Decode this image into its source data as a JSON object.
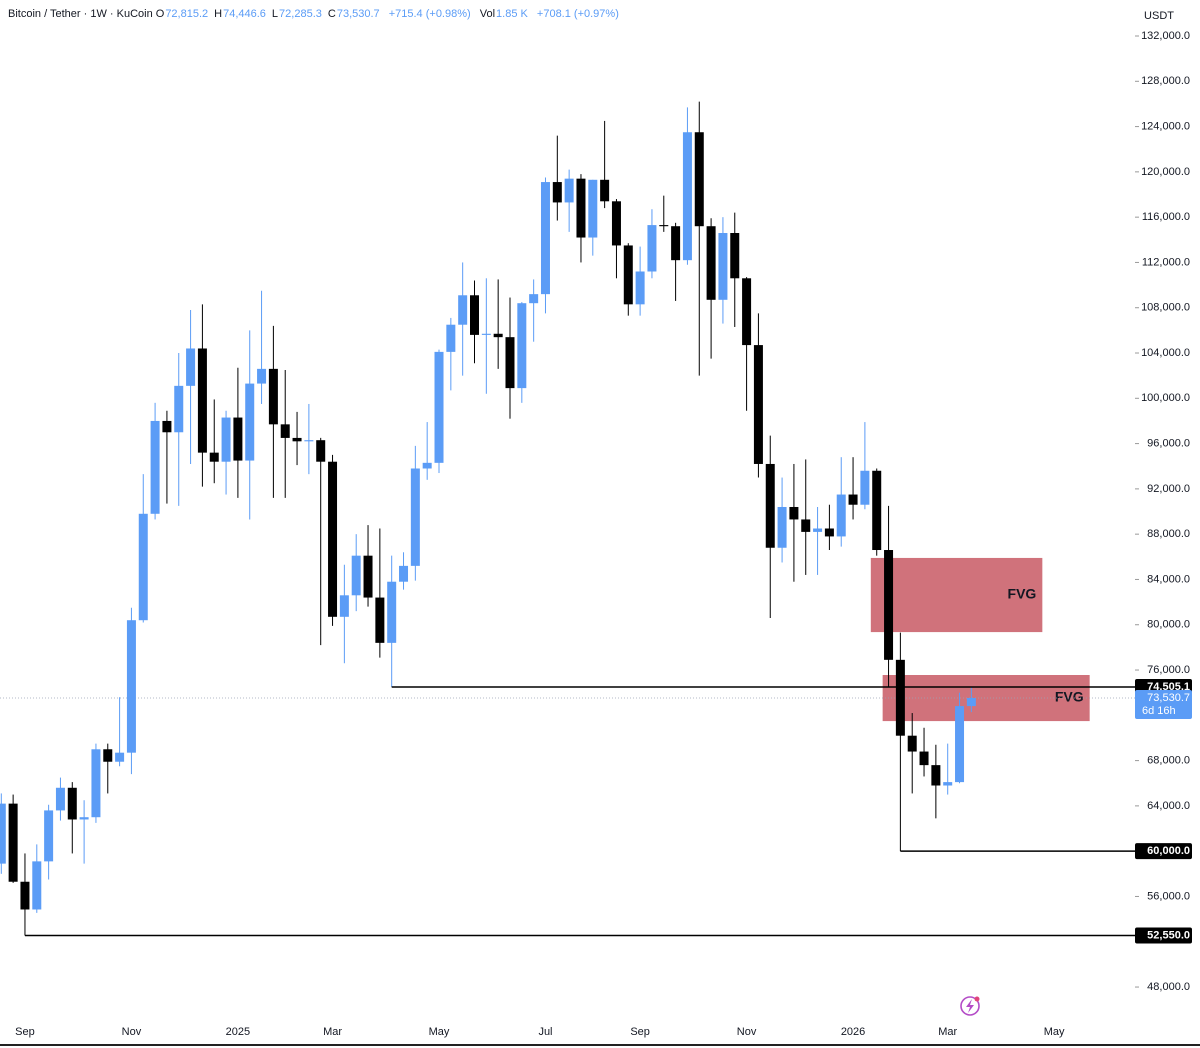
{
  "header": {
    "symbol": "Bitcoin / Tether · 1W · KuCoin",
    "fields": [
      {
        "key": "O",
        "text": "72,815.2"
      },
      {
        "key": "H",
        "text": "74,446.6"
      },
      {
        "key": "L",
        "text": "72,285.3"
      },
      {
        "key": "C",
        "text": "73,530.7"
      }
    ],
    "change": "+715.4 (+0.98%)",
    "volume_key": "Vol",
    "volume": "1.85 K",
    "volume_change": "+708.1 (+0.97%)"
  },
  "chart_data": {
    "type": "candlestick",
    "currency": "USDT",
    "up_color": "#5b9cf6",
    "down_color": "#000000",
    "grid": false,
    "categories": [
      null,
      null,
      "Sep",
      null,
      null,
      null,
      null,
      null,
      null,
      null,
      null,
      "Nov",
      null,
      null,
      null,
      null,
      null,
      null,
      null,
      null,
      "2025",
      null,
      null,
      null,
      null,
      null,
      null,
      null,
      "Mar",
      null,
      null,
      null,
      null,
      null,
      null,
      null,
      null,
      "May",
      null,
      null,
      null,
      null,
      null,
      null,
      null,
      null,
      "Jul",
      null,
      null,
      null,
      null,
      null,
      null,
      null,
      "Sep",
      null,
      null,
      null,
      null,
      null,
      null,
      null,
      null,
      "Nov",
      null,
      null,
      null,
      null,
      null,
      null,
      null,
      null,
      "2026",
      null,
      null,
      null,
      null,
      null,
      null,
      null,
      "Mar",
      null,
      null,
      null,
      null,
      null,
      null,
      null,
      null,
      "May",
      null,
      null,
      null,
      null,
      null,
      null
    ],
    "open": [
      58900,
      64200,
      57300,
      54850,
      59100,
      63600,
      65600,
      62800,
      63000,
      69000,
      67900,
      68700,
      80400,
      89800,
      98000,
      97000,
      101100,
      104400,
      95200,
      94400,
      98300,
      94500,
      101300,
      102600,
      97700,
      96500,
      96200,
      96300,
      94400,
      80700,
      82600,
      86100,
      82400,
      78400,
      83800,
      85200,
      93800,
      94300,
      104100,
      106500,
      109100,
      105600,
      105700,
      105400,
      100900,
      108400,
      109200,
      119100,
      117300,
      119400,
      114200,
      119300,
      117400,
      113500,
      108300,
      111200,
      115300,
      115200,
      112200,
      123500,
      115200,
      108700,
      114600,
      110600,
      104700,
      94200,
      86800,
      90400,
      89300,
      88200,
      88500,
      87800,
      91500,
      90600,
      93600,
      86600,
      76900,
      70200,
      68800,
      67600,
      65800,
      66100,
      72815.2,
      null,
      null,
      null,
      null,
      null,
      null,
      null,
      null,
      null,
      null,
      null,
      null,
      null
    ],
    "high": [
      65100,
      65000,
      59800,
      60600,
      64100,
      66500,
      66100,
      64500,
      69500,
      69500,
      73600,
      81500,
      93300,
      99600,
      98900,
      104000,
      107800,
      108300,
      99900,
      98900,
      102700,
      106000,
      109500,
      106400,
      102500,
      98800,
      99500,
      96500,
      95000,
      85300,
      88000,
      88800,
      88500,
      86100,
      86400,
      95800,
      97900,
      104300,
      107100,
      112000,
      110400,
      110600,
      110500,
      108900,
      108500,
      110500,
      119500,
      123200,
      120200,
      119800,
      119300,
      124500,
      117600,
      113700,
      113400,
      116700,
      117900,
      115500,
      125700,
      126200,
      115900,
      116000,
      116400,
      110700,
      107500,
      96700,
      93000,
      94200,
      94600,
      90400,
      90600,
      94800,
      94800,
      97900,
      93800,
      90500,
      79300,
      72200,
      70900,
      69400,
      69500,
      74000,
      74446.6,
      null,
      null,
      null,
      null,
      null,
      null,
      null,
      null,
      null,
      null,
      null,
      null,
      null
    ],
    "low": [
      58000,
      57200,
      52550,
      54550,
      57500,
      62700,
      59800,
      58900,
      62500,
      65100,
      67500,
      66800,
      80200,
      89300,
      90700,
      90500,
      94200,
      92200,
      92500,
      91500,
      91200,
      89300,
      99500,
      91200,
      91200,
      94100,
      93300,
      78200,
      79900,
      76600,
      81200,
      81600,
      77100,
      74505.1,
      83100,
      83900,
      92800,
      93400,
      100700,
      102000,
      103100,
      100400,
      102600,
      98200,
      99600,
      105000,
      107500,
      115700,
      114700,
      112000,
      112600,
      116800,
      110600,
      107300,
      107300,
      110600,
      114700,
      108600,
      111800,
      102000,
      103500,
      106600,
      106300,
      98900,
      93000,
      80600,
      85500,
      83800,
      84400,
      84400,
      86600,
      86900,
      89300,
      90200,
      86100,
      74500,
      60000,
      65100,
      66600,
      62900,
      65000,
      66000,
      72285.3,
      null,
      null,
      null,
      null,
      null,
      null,
      null,
      null,
      null,
      null,
      null,
      null,
      null
    ],
    "close": [
      64200,
      57300,
      54850,
      59100,
      63600,
      65600,
      62800,
      63000,
      69000,
      67900,
      68700,
      80400,
      89800,
      98000,
      97000,
      101100,
      104400,
      95200,
      94400,
      98300,
      94500,
      101300,
      102600,
      97700,
      96500,
      96200,
      96300,
      94400,
      80700,
      82600,
      86100,
      82400,
      78400,
      83800,
      85200,
      93800,
      94300,
      104100,
      106500,
      109100,
      105600,
      105700,
      105400,
      100900,
      108400,
      109200,
      119100,
      117300,
      119400,
      114200,
      119300,
      117400,
      113500,
      108300,
      111200,
      115300,
      115200,
      112200,
      123500,
      115200,
      108700,
      114600,
      110600,
      104700,
      94200,
      86800,
      90400,
      89300,
      88200,
      88500,
      87800,
      91500,
      90600,
      93600,
      86600,
      76900,
      70200,
      68800,
      67600,
      65800,
      66100,
      72815.2,
      73530.7,
      null,
      null,
      null,
      null,
      null,
      null,
      null,
      null,
      null,
      null,
      null,
      null,
      null
    ],
    "ylim": [
      45530,
      135180
    ],
    "yticks": [
      {
        "value": 132000,
        "label": "132,000.0"
      },
      {
        "value": 128000,
        "label": "128,000.0"
      },
      {
        "value": 124000,
        "label": "124,000.0"
      },
      {
        "value": 120000,
        "label": "120,000.0"
      },
      {
        "value": 116000,
        "label": "116,000.0"
      },
      {
        "value": 112000,
        "label": "112,000.0"
      },
      {
        "value": 108000,
        "label": "108,000.0"
      },
      {
        "value": 104000,
        "label": "104,000.0"
      },
      {
        "value": 100000,
        "label": "100,000.0"
      },
      {
        "value": 96000,
        "label": "96,000.0"
      },
      {
        "value": 92000,
        "label": "92,000.0"
      },
      {
        "value": 88000,
        "label": "88,000.0"
      },
      {
        "value": 84000,
        "label": "84,000.0"
      },
      {
        "value": 80000,
        "label": "80,000.0"
      },
      {
        "value": 76000,
        "label": "76,000.0"
      },
      {
        "value": 68000,
        "label": "68,000.0"
      },
      {
        "value": 64000,
        "label": "64,000.0"
      },
      {
        "value": 56000,
        "label": "56,000.0"
      },
      {
        "value": 48000,
        "label": "48,000.0"
      }
    ],
    "levels": [
      {
        "value": 74505.1,
        "label": "74,505.1",
        "from": 33
      },
      {
        "value": 60000,
        "label": "60,000.0",
        "from": 76
      },
      {
        "value": 52550,
        "label": "52,550.0",
        "from": 2
      }
    ],
    "zones": [
      {
        "label": "FVG",
        "top": 85900,
        "bottom": 79350,
        "from": 74,
        "to": 88,
        "color": "#cc6670"
      },
      {
        "label": "FVG",
        "top": 75560,
        "bottom": 71490,
        "from": 75,
        "to": 92,
        "color": "#cc6670"
      }
    ],
    "last_price": {
      "value": 73530.7,
      "label": "73,530.7",
      "countdown": "6d 16h",
      "color": "#5b9cf6"
    }
  }
}
